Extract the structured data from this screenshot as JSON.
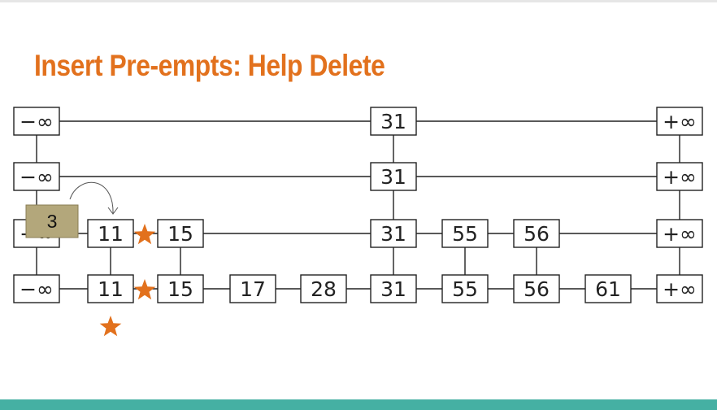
{
  "title": "Insert Pre-empts: Help Delete",
  "colors": {
    "title": "#e2711d",
    "star": "#e2711d",
    "bottom_bar": "#45b0a3",
    "sticky": "#b3a77b"
  },
  "skip_list": {
    "columns": [
      "−∞",
      "11",
      "15",
      "17",
      "28",
      "31",
      "55",
      "56",
      "61",
      "+∞"
    ],
    "levels": [
      [
        "−∞",
        "31",
        "+∞"
      ],
      [
        "−∞",
        "31",
        "+∞"
      ],
      [
        "−∞",
        "11",
        "15",
        "31",
        "55",
        "56",
        "+∞"
      ],
      [
        "−∞",
        "11",
        "15",
        "17",
        "28",
        "31",
        "55",
        "56",
        "61",
        "+∞"
      ]
    ]
  },
  "insert_note": {
    "label": "3",
    "icon": "curved-arrow-icon"
  },
  "markers": {
    "icon": "star-icon",
    "count": 3
  }
}
